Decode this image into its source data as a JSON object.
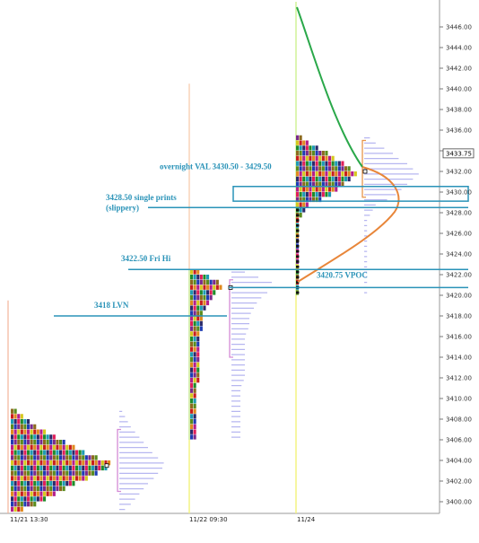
{
  "chart_data": {
    "type": "market-profile",
    "title": "",
    "y_range": [
      3398,
      3448
    ],
    "y_ticks": [
      "3400.00",
      "3402.00",
      "3404.00",
      "3406.00",
      "3408.00",
      "3410.00",
      "3412.00",
      "3414.00",
      "3416.00",
      "3418.00",
      "3420.00",
      "3422.00",
      "3424.00",
      "3426.00",
      "3428.00",
      "3430.00",
      "3432.00",
      "3434.00",
      "3436.00",
      "3438.00",
      "3440.00",
      "3442.00",
      "3444.00",
      "3446.00"
    ],
    "current_price": "3433.75",
    "current_price_value": 3433.75,
    "sessions": [
      {
        "date_label": "11/21 13:30",
        "profile_low": 3399.25,
        "profile_high": 3409.0,
        "poc": 3403.5,
        "value_area": [
          3401.0,
          3407.0
        ],
        "shape": [
          [
            3399.25,
            4
          ],
          [
            3399.75,
            8
          ],
          [
            3400.25,
            11
          ],
          [
            3400.75,
            14
          ],
          [
            3401.25,
            17
          ],
          [
            3401.75,
            20
          ],
          [
            3402.25,
            24
          ],
          [
            3402.75,
            27
          ],
          [
            3403.25,
            30
          ],
          [
            3403.75,
            31
          ],
          [
            3404.25,
            27
          ],
          [
            3404.75,
            23
          ],
          [
            3405.25,
            20
          ],
          [
            3405.75,
            17
          ],
          [
            3406.25,
            14
          ],
          [
            3406.75,
            11
          ],
          [
            3407.25,
            8
          ],
          [
            3407.75,
            6
          ],
          [
            3408.25,
            4
          ],
          [
            3408.75,
            2
          ]
        ]
      },
      {
        "date_label": "11/22 09:30",
        "profile_low": 3406.25,
        "profile_high": 3422.25,
        "poc": 3420.75,
        "value_area": [
          3414.0,
          3421.5
        ],
        "shape": [
          [
            3406.25,
            2
          ],
          [
            3407.0,
            2
          ],
          [
            3408.0,
            2
          ],
          [
            3409.0,
            2
          ],
          [
            3410.0,
            2
          ],
          [
            3411.0,
            2
          ],
          [
            3412.0,
            3
          ],
          [
            3413.0,
            3
          ],
          [
            3414.0,
            3
          ],
          [
            3415.0,
            3
          ],
          [
            3416.0,
            3
          ],
          [
            3417.0,
            4
          ],
          [
            3418.0,
            4
          ],
          [
            3418.75,
            5
          ],
          [
            3419.5,
            6
          ],
          [
            3420.25,
            8
          ],
          [
            3420.75,
            10
          ],
          [
            3421.25,
            9
          ],
          [
            3421.75,
            6
          ],
          [
            3422.25,
            3
          ]
        ]
      },
      {
        "date_label": "11/24",
        "profile_low": 3420.25,
        "profile_high": 3435.25,
        "poc": 3432.0,
        "value_area": [
          3429.5,
          3435.0
        ],
        "shape": [
          [
            3420.25,
            1
          ],
          [
            3421.25,
            1
          ],
          [
            3422.25,
            1
          ],
          [
            3423.25,
            1
          ],
          [
            3424.25,
            1
          ],
          [
            3425.25,
            1
          ],
          [
            3426.25,
            1
          ],
          [
            3427.25,
            1
          ],
          [
            3428.25,
            3
          ],
          [
            3428.75,
            4
          ],
          [
            3429.25,
            8
          ],
          [
            3429.75,
            11
          ],
          [
            3430.25,
            13
          ],
          [
            3430.75,
            15
          ],
          [
            3431.25,
            17
          ],
          [
            3431.75,
            19
          ],
          [
            3432.25,
            17
          ],
          [
            3432.75,
            15
          ],
          [
            3433.25,
            12
          ],
          [
            3433.75,
            10
          ],
          [
            3434.25,
            7
          ],
          [
            3434.75,
            4
          ],
          [
            3435.25,
            2
          ]
        ]
      }
    ],
    "annotations": [
      {
        "text": "overnight VAL 3430.50 - 3429.50",
        "price": 3430.0
      },
      {
        "text": "3428.50 single prints",
        "text2": "(slippery)",
        "price": 3428.5
      },
      {
        "text": "3422.50 Fri Hi",
        "price": 3422.5
      },
      {
        "text": "3418 LVN",
        "price": 3418.0
      },
      {
        "text": "3420.75 VPOC",
        "price": 3420.75
      }
    ],
    "tpo_colors": [
      "#c81e1e",
      "#1e3cb4",
      "#1e8c2a",
      "#e08a1e",
      "#7a2a8c",
      "#1e9ab4",
      "#b41e8c",
      "#8c6a1e",
      "#2a2a6a",
      "#d6c81e",
      "#5a8c1e",
      "#e01e5a"
    ],
    "line_colors": {
      "session_line_1": "#f4b39a",
      "session_line_2": "#b9e07a",
      "session_line_2_yellow": "#f2f27a",
      "session_line_3": "#c6ee7e",
      "volume_profile": "#b4b4f0",
      "value_area_bracket": "#e8944a",
      "value_area_bracket_2": "#d48ad6",
      "annotation": "#2a93b8",
      "green_curve": "#2aa84a",
      "orange_curve": "#e8863a"
    }
  }
}
